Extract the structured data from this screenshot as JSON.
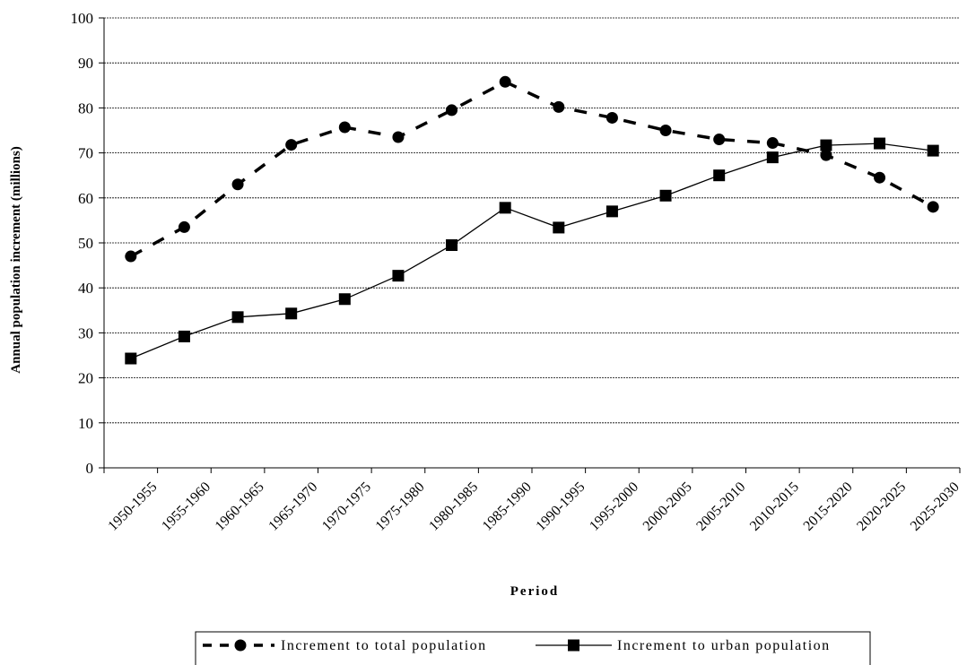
{
  "chart_data": {
    "type": "line",
    "categories": [
      "1950-1955",
      "1955-1960",
      "1960-1965",
      "1965-1970",
      "1970-1975",
      "1975-1980",
      "1980-1985",
      "1985-1990",
      "1990-1995",
      "1995-2000",
      "2000-2005",
      "2005-2010",
      "2010-2015",
      "2015-2020",
      "2020-2025",
      "2025-2030"
    ],
    "series": [
      {
        "name": "Increment to total population",
        "values": [
          47,
          53.5,
          63,
          71.8,
          75.7,
          73.5,
          79.5,
          85.8,
          80.2,
          77.8,
          75,
          73,
          72.2,
          69.5,
          64.5,
          58
        ],
        "style": "dashed",
        "marker": "circle",
        "color": "#000000"
      },
      {
        "name": "Increment to urban population",
        "values": [
          24.3,
          29.2,
          33.5,
          34.3,
          37.5,
          42.7,
          49.5,
          57.8,
          53.4,
          57,
          60.5,
          65,
          69,
          71.7,
          72.1,
          70.5
        ],
        "style": "solid",
        "marker": "square",
        "color": "#000000"
      }
    ],
    "title": "",
    "xlabel": "Period",
    "ylabel": "Annual population increment (millions)",
    "ylim": [
      0,
      100
    ],
    "yticks": [
      0,
      10,
      20,
      30,
      40,
      50,
      60,
      70,
      80,
      90,
      100
    ],
    "grid": "horizontal",
    "legend_position": "bottom"
  }
}
